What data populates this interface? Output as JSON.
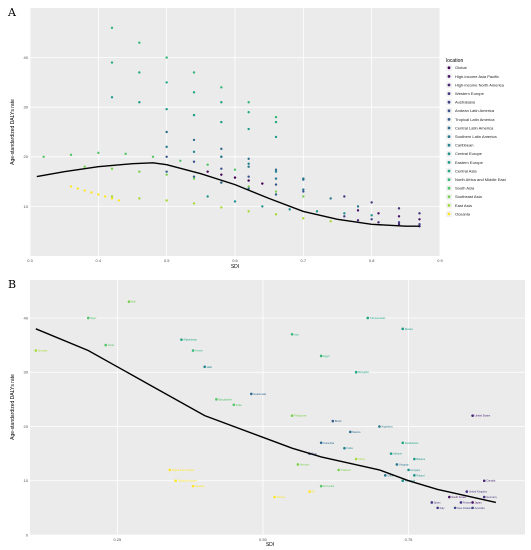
{
  "chart_data": [
    {
      "panel": "A",
      "type": "scatter",
      "xlabel": "SDI",
      "ylabel": "Age-standardized DALYs rate",
      "xlim": [
        0.3,
        0.9
      ],
      "ylim": [
        0,
        50
      ],
      "x_ticks": [
        "0.3",
        "0.4",
        "0.5",
        "0.6",
        "0.7",
        "0.8",
        "0.9"
      ],
      "y_ticks": [
        "10",
        "20",
        "30",
        "40"
      ],
      "grid": true,
      "legend": {
        "title": "location",
        "placement": "right",
        "items": [
          {
            "label": "Global",
            "color": "#440154"
          },
          {
            "label": "High-income Asia Pacific",
            "color": "#471465"
          },
          {
            "label": "High-income North America",
            "color": "#482475"
          },
          {
            "label": "Western Europe",
            "color": "#46337f"
          },
          {
            "label": "Australasia",
            "color": "#414487"
          },
          {
            "label": "Andean Latin America",
            "color": "#3b528b"
          },
          {
            "label": "Tropical Latin America",
            "color": "#355f8d"
          },
          {
            "label": "Central Latin America",
            "color": "#2f6c8e"
          },
          {
            "label": "Southern Latin America",
            "color": "#2a788e"
          },
          {
            "label": "Caribbean",
            "color": "#25848e"
          },
          {
            "label": "Central Europe",
            "color": "#21918c"
          },
          {
            "label": "Eastern Europe",
            "color": "#1e9c89"
          },
          {
            "label": "Central Asia",
            "color": "#22a884"
          },
          {
            "label": "North Africa and Middle East",
            "color": "#35b779"
          },
          {
            "label": "South Asia",
            "color": "#54c568"
          },
          {
            "label": "Southeast Asia",
            "color": "#7ad151"
          },
          {
            "label": "East Asia",
            "color": "#a5db36"
          },
          {
            "label": "Oceania",
            "color": "#fde725"
          }
        ]
      },
      "series": [
        {
          "region": "Oceania",
          "color": "#fde725",
          "x": [
            0.36,
            0.37,
            0.38,
            0.39,
            0.4,
            0.41,
            0.42,
            0.43
          ],
          "y": [
            14,
            13.6,
            13.2,
            12.8,
            12.4,
            12.0,
            11.6,
            11.2
          ]
        },
        {
          "region": "East Asia",
          "color": "#a5db36",
          "x": [
            0.42,
            0.46,
            0.5,
            0.54,
            0.58,
            0.62,
            0.66,
            0.7,
            0.74
          ],
          "y": [
            12,
            11.6,
            11.2,
            10.6,
            9.8,
            9,
            8.4,
            7.6,
            7
          ]
        },
        {
          "region": "Southeast Asia",
          "color": "#7ad151",
          "x": [
            0.38,
            0.42,
            0.46,
            0.5,
            0.54,
            0.58,
            0.62,
            0.66,
            0.7
          ],
          "y": [
            18,
            17.6,
            17,
            16.4,
            15.6,
            14.8,
            14,
            13,
            12
          ]
        },
        {
          "region": "South Asia",
          "color": "#54c568",
          "x": [
            0.32,
            0.36,
            0.4,
            0.44,
            0.48,
            0.52,
            0.56,
            0.6
          ],
          "y": [
            20,
            20.4,
            20.8,
            20.6,
            20,
            19.2,
            18.4,
            17.4
          ]
        },
        {
          "region": "North Africa and Middle East",
          "color": "#35b779",
          "x": [
            0.42,
            0.46,
            0.5,
            0.54,
            0.58,
            0.62,
            0.66
          ],
          "y": [
            46,
            43,
            40,
            37,
            34,
            31,
            28
          ]
        },
        {
          "region": "Central Asia",
          "color": "#22a884",
          "x": [
            0.42,
            0.46,
            0.5,
            0.54,
            0.58,
            0.62,
            0.66
          ],
          "y": [
            39,
            37,
            35,
            33,
            31,
            29,
            27
          ]
        },
        {
          "region": "Eastern Europe",
          "color": "#1e9c89",
          "x": [
            0.42,
            0.46,
            0.5,
            0.54,
            0.58,
            0.62,
            0.66
          ],
          "y": [
            32,
            31,
            29.6,
            28.4,
            27,
            25.6,
            24
          ]
        },
        {
          "region": "Central Europe",
          "color": "#21918c",
          "x": [
            0.56,
            0.6,
            0.64,
            0.68,
            0.72,
            0.76,
            0.8
          ],
          "y": [
            12,
            11,
            10,
            9.4,
            9,
            8.6,
            8.2
          ]
        },
        {
          "region": "Caribbean",
          "color": "#25848e",
          "x": [
            0.5,
            0.54,
            0.58,
            0.62,
            0.66,
            0.7
          ],
          "y": [
            22,
            21,
            20,
            18.6,
            17,
            15.6
          ]
        },
        {
          "region": "Southern Latin America",
          "color": "#2a788e",
          "x": [
            0.58,
            0.62,
            0.66,
            0.7,
            0.74,
            0.78
          ],
          "y": [
            20,
            18,
            15.6,
            13.4,
            11.6,
            10
          ]
        },
        {
          "region": "Central Latin America",
          "color": "#2f6c8e",
          "x": [
            0.5,
            0.54,
            0.58,
            0.62,
            0.66,
            0.7
          ],
          "y": [
            25,
            23.4,
            21.6,
            19.6,
            17.4,
            15.4
          ]
        },
        {
          "region": "Tropical Latin America",
          "color": "#355f8d",
          "x": [
            0.5,
            0.54,
            0.58,
            0.62,
            0.66
          ],
          "y": [
            17,
            16,
            14.8,
            13.6,
            12.4
          ]
        },
        {
          "region": "Andean Latin America",
          "color": "#3b528b",
          "x": [
            0.5,
            0.54,
            0.58,
            0.62,
            0.66,
            0.7
          ],
          "y": [
            20,
            19,
            17.6,
            16,
            14.4,
            13
          ]
        },
        {
          "region": "Australasia",
          "color": "#414487",
          "x": [
            0.76,
            0.8,
            0.84,
            0.87
          ],
          "y": [
            8,
            7.4,
            6.8,
            6.4
          ]
        },
        {
          "region": "Western Europe",
          "color": "#46337f",
          "x": [
            0.76,
            0.8,
            0.84,
            0.87
          ],
          "y": [
            12,
            10.8,
            9.6,
            8.6
          ]
        },
        {
          "region": "High-income North America",
          "color": "#482475",
          "x": [
            0.78,
            0.81,
            0.84,
            0.87
          ],
          "y": [
            7.2,
            6.8,
            6.4,
            6.0
          ]
        },
        {
          "region": "High-income Asia Pacific",
          "color": "#471465",
          "x": [
            0.78,
            0.81,
            0.84,
            0.87
          ],
          "y": [
            9.2,
            8.6,
            8,
            7.4
          ]
        },
        {
          "region": "Global",
          "color": "#440154",
          "x": [
            0.56,
            0.58,
            0.6,
            0.62,
            0.64
          ],
          "y": [
            17,
            16.4,
            15.8,
            15.2,
            14.6
          ]
        }
      ],
      "trend": {
        "x": [
          0.31,
          0.35,
          0.4,
          0.45,
          0.48,
          0.5,
          0.55,
          0.6,
          0.65,
          0.7,
          0.75,
          0.8,
          0.85,
          0.87
        ],
        "y": [
          16,
          17,
          18,
          18.6,
          18.8,
          18.4,
          16.6,
          14.4,
          11.6,
          9,
          7.4,
          6.4,
          6,
          6
        ]
      }
    },
    {
      "panel": "B",
      "type": "scatter",
      "xlabel": "SDI",
      "ylabel": "Age-standardized DALYs rate",
      "xlim": [
        0.1,
        0.95
      ],
      "ylim": [
        0,
        47
      ],
      "x_ticks": [
        "0.25",
        "0.50",
        "0.75"
      ],
      "y_ticks": [
        "0",
        "10",
        "20",
        "30",
        "40"
      ],
      "grid": true,
      "points": [
        {
          "name": "Mali",
          "x": 0.27,
          "y": 43,
          "color": "#7ad151"
        },
        {
          "name": "Niger",
          "x": 0.2,
          "y": 40,
          "color": "#54c568"
        },
        {
          "name": "Somalia",
          "x": 0.11,
          "y": 34,
          "color": "#a5db36"
        },
        {
          "name": "Chad",
          "x": 0.23,
          "y": 35,
          "color": "#54c568"
        },
        {
          "name": "Afghanistan",
          "x": 0.36,
          "y": 36,
          "color": "#22a884"
        },
        {
          "name": "Yemen",
          "x": 0.38,
          "y": 34,
          "color": "#35b779"
        },
        {
          "name": "Haiti",
          "x": 0.4,
          "y": 31,
          "color": "#25848e"
        },
        {
          "name": "Iraq",
          "x": 0.55,
          "y": 37,
          "color": "#35b779"
        },
        {
          "name": "Egypt",
          "x": 0.6,
          "y": 33,
          "color": "#35b779"
        },
        {
          "name": "Turkmenistan",
          "x": 0.68,
          "y": 40,
          "color": "#22a884"
        },
        {
          "name": "Russia",
          "x": 0.74,
          "y": 38,
          "color": "#1e9c89"
        },
        {
          "name": "Mongolia",
          "x": 0.66,
          "y": 30,
          "color": "#22a884"
        },
        {
          "name": "Guatemala",
          "x": 0.48,
          "y": 26,
          "color": "#2f6c8e"
        },
        {
          "name": "India",
          "x": 0.45,
          "y": 24,
          "color": "#54c568"
        },
        {
          "name": "Bangladesh",
          "x": 0.42,
          "y": 25,
          "color": "#54c568"
        },
        {
          "name": "Philippines",
          "x": 0.55,
          "y": 22,
          "color": "#7ad151"
        },
        {
          "name": "Brazil",
          "x": 0.62,
          "y": 21,
          "color": "#355f8d"
        },
        {
          "name": "Mexico",
          "x": 0.65,
          "y": 19,
          "color": "#2f6c8e"
        },
        {
          "name": "Argentina",
          "x": 0.7,
          "y": 20,
          "color": "#2a788e"
        },
        {
          "name": "Colombia",
          "x": 0.6,
          "y": 17,
          "color": "#2f6c8e"
        },
        {
          "name": "Peru",
          "x": 0.58,
          "y": 15,
          "color": "#3b528b"
        },
        {
          "name": "China",
          "x": 0.66,
          "y": 14,
          "color": "#a5db36"
        },
        {
          "name": "Vietnam",
          "x": 0.56,
          "y": 13,
          "color": "#7ad151"
        },
        {
          "name": "Thailand",
          "x": 0.63,
          "y": 12,
          "color": "#7ad151"
        },
        {
          "name": "Poland",
          "x": 0.76,
          "y": 11,
          "color": "#21918c"
        },
        {
          "name": "Hungary",
          "x": 0.75,
          "y": 12,
          "color": "#21918c"
        },
        {
          "name": "Chile",
          "x": 0.71,
          "y": 11,
          "color": "#2a788e"
        },
        {
          "name": "Uruguay",
          "x": 0.73,
          "y": 13,
          "color": "#2a788e"
        },
        {
          "name": "Cuba",
          "x": 0.64,
          "y": 16,
          "color": "#25848e"
        },
        {
          "name": "United States",
          "x": 0.86,
          "y": 22,
          "color": "#482475"
        },
        {
          "name": "Canada",
          "x": 0.88,
          "y": 10,
          "color": "#482475"
        },
        {
          "name": "Japan",
          "x": 0.86,
          "y": 6,
          "color": "#471465"
        },
        {
          "name": "South Korea",
          "x": 0.82,
          "y": 7,
          "color": "#471465"
        },
        {
          "name": "Australia",
          "x": 0.86,
          "y": 5,
          "color": "#414487"
        },
        {
          "name": "New Zealand",
          "x": 0.83,
          "y": 5,
          "color": "#414487"
        },
        {
          "name": "Germany",
          "x": 0.88,
          "y": 7,
          "color": "#46337f"
        },
        {
          "name": "France",
          "x": 0.84,
          "y": 6,
          "color": "#46337f"
        },
        {
          "name": "Italy",
          "x": 0.8,
          "y": 5,
          "color": "#46337f"
        },
        {
          "name": "Spain",
          "x": 0.79,
          "y": 6,
          "color": "#46337f"
        },
        {
          "name": "United Kingdom",
          "x": 0.85,
          "y": 8,
          "color": "#46337f"
        },
        {
          "name": "Papua New Guinea",
          "x": 0.34,
          "y": 12,
          "color": "#fde725"
        },
        {
          "name": "Solomon Islands",
          "x": 0.35,
          "y": 10,
          "color": "#fde725"
        },
        {
          "name": "Vanuatu",
          "x": 0.38,
          "y": 9,
          "color": "#fde725"
        },
        {
          "name": "Fiji",
          "x": 0.58,
          "y": 8,
          "color": "#fde725"
        },
        {
          "name": "Samoa",
          "x": 0.52,
          "y": 7,
          "color": "#fde725"
        },
        {
          "name": "Sri Lanka",
          "x": 0.6,
          "y": 9,
          "color": "#54c568"
        },
        {
          "name": "Kazakhstan",
          "x": 0.74,
          "y": 17,
          "color": "#22a884"
        },
        {
          "name": "Ukraine",
          "x": 0.72,
          "y": 15,
          "color": "#1e9c89"
        },
        {
          "name": "Belarus",
          "x": 0.76,
          "y": 14,
          "color": "#1e9c89"
        },
        {
          "name": "Romania",
          "x": 0.74,
          "y": 10,
          "color": "#21918c"
        }
      ],
      "trend": {
        "x": [
          0.11,
          0.2,
          0.3,
          0.4,
          0.5,
          0.55,
          0.6,
          0.65,
          0.7,
          0.75,
          0.8,
          0.85,
          0.9
        ],
        "y": [
          38,
          34,
          28,
          22,
          18,
          16,
          14.4,
          13.2,
          12,
          10,
          8.4,
          7.2,
          6
        ]
      }
    }
  ]
}
